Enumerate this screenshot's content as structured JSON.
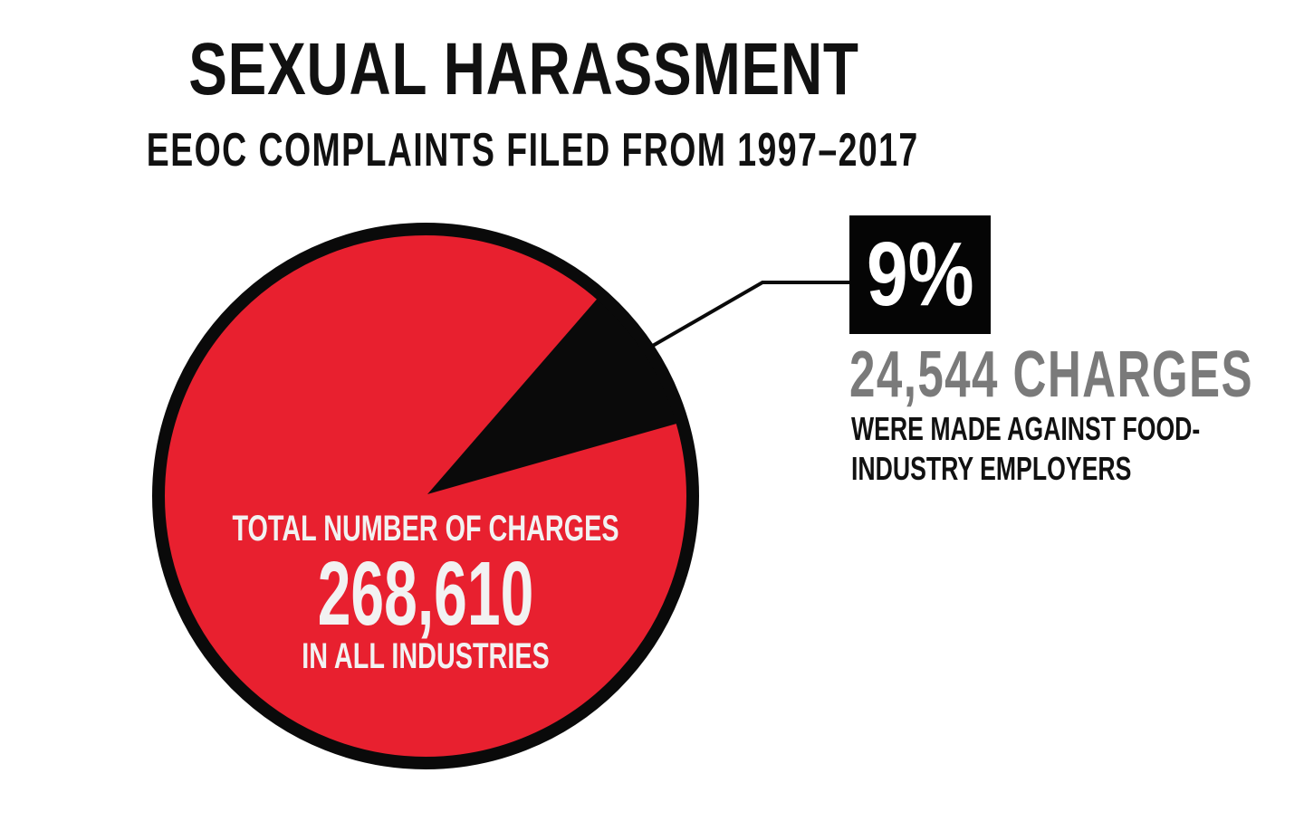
{
  "chart_data": {
    "type": "pie",
    "title": "SEXUAL HARASSMENT",
    "subtitle": "EEOC COMPLAINTS FILED FROM 1997–2017",
    "total": 268610,
    "slices": [
      {
        "value": 244066,
        "color": "#e8202f"
      },
      {
        "value": 24544,
        "color": "#0a0a0a"
      }
    ],
    "center_label_top": "TOTAL NUMBER OF CHARGES",
    "center_value": "268,610",
    "center_label_bottom": "IN ALL INDUSTRIES",
    "callout": {
      "percent": "9%",
      "count": "24,544 CHARGES",
      "description": "WERE MADE AGAINST FOOD-INDUSTRY EMPLOYERS"
    }
  },
  "colors": {
    "red": "#e8202f",
    "black": "#0a0a0a",
    "gray_text": "#7a7a7a",
    "white": "#ffffff"
  }
}
